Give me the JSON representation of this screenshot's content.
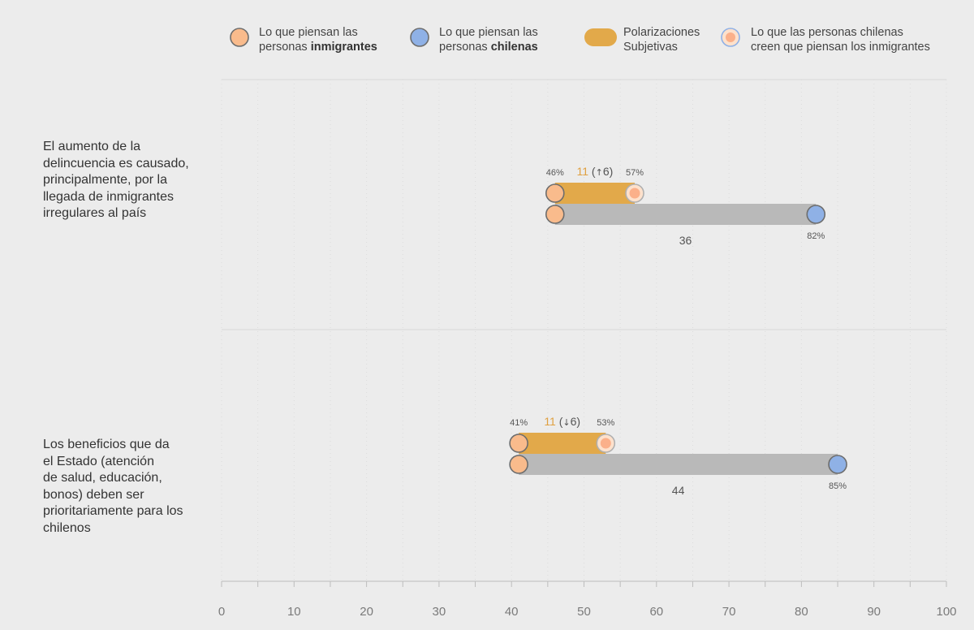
{
  "legend": {
    "immigrants": {
      "line1": "Lo que piensan las",
      "line2_prefix": "personas ",
      "line2_bold": "inmigrantes"
    },
    "chileans": {
      "line1": "Lo que piensan las",
      "line2_prefix": "personas ",
      "line2_bold": "chilenas"
    },
    "polarization": {
      "line1": "Polarizaciones",
      "line2": "Subjetivas"
    },
    "perceived": {
      "line1": "Lo que las personas chilenas",
      "line2": "creen que piensan los inmigrantes"
    }
  },
  "colors": {
    "immigrants": "#f9bb8c",
    "chileans": "#8fb1e6",
    "perceived_inner": "#fbb08a",
    "perceived_outer": "#fde1cc",
    "polarization_bar": "#e2a94a",
    "gap_bar": "#b9b9b9",
    "marker_stroke": "#6d6d6d",
    "orange_text": "#e0a040",
    "background": "#ececec"
  },
  "chart_data": {
    "type": "dumbbell",
    "x_axis": {
      "range": [
        0,
        100
      ],
      "ticks": [
        "0",
        "10",
        "20",
        "30",
        "40",
        "50",
        "60",
        "70",
        "80",
        "90",
        "100"
      ]
    },
    "rows": [
      {
        "label": "El aumento de la delincuencia es causado, principalmente, por la llegada de inmigrantes irregulares al país",
        "label_lines": [
          "El aumento de la",
          "delincuencia es causado,",
          "principalmente, por la",
          "llegada de inmigrantes",
          "irregulares al país"
        ],
        "immigrants": 46,
        "perceived": 57,
        "chileans": 82,
        "immigrants_label": "46%",
        "perceived_label": "57%",
        "chileans_label": "82%",
        "polarization": "11",
        "change_arrow": "↑",
        "change": "6",
        "change_prefix": "(",
        "change_suffix": ")",
        "gap": "36"
      },
      {
        "label": "Los beneficios que da el Estado (atención de salud, educación, bonos) deben ser prioritariamente para los chilenos",
        "label_lines": [
          "Los beneficios que da",
          "el Estado (atención",
          "de salud, educación,",
          "bonos) deben ser",
          "prioritariamente para los",
          "chilenos"
        ],
        "immigrants": 41,
        "perceived": 53,
        "chileans": 85,
        "immigrants_label": "41%",
        "perceived_label": "53%",
        "chileans_label": "85%",
        "polarization": "11",
        "change_arrow": "↓",
        "change": "6",
        "change_prefix": "(",
        "change_suffix": ")",
        "gap": "44"
      }
    ]
  }
}
